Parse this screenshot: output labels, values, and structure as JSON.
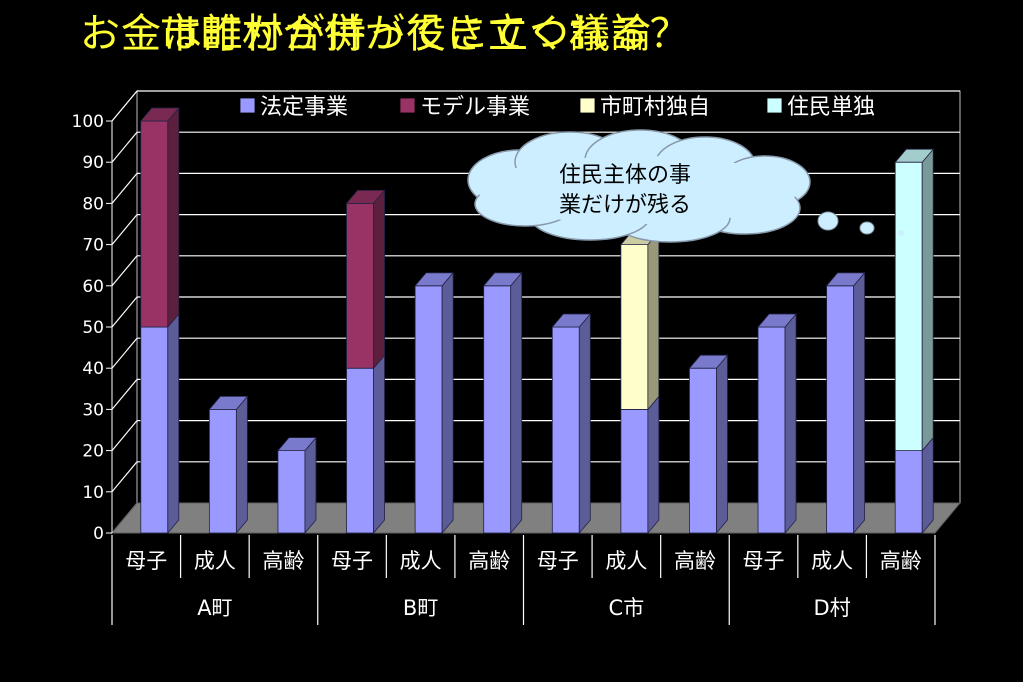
{
  "titles": {
    "line1": "お金は誰かが持ってきてくれる？",
    "line2": "市町村合併が役に立つ議論"
  },
  "colors": {
    "background": "#000000",
    "title": "#ffff33",
    "gridline": "#ffffff",
    "floor": "#808080"
  },
  "cloud": {
    "line1": "住民主体の事",
    "line2": "業だけが残る"
  },
  "chart_data": {
    "type": "bar",
    "stacked": true,
    "three_d": true,
    "ylim": [
      0,
      100
    ],
    "yticks": [
      0,
      10,
      20,
      30,
      40,
      50,
      60,
      70,
      80,
      90,
      100
    ],
    "grid": true,
    "legend_position": "top",
    "groups": [
      {
        "name": "A町",
        "categories": [
          "母子",
          "成人",
          "高齢"
        ]
      },
      {
        "name": "B町",
        "categories": [
          "母子",
          "成人",
          "高齢"
        ]
      },
      {
        "name": "C市",
        "categories": [
          "母子",
          "成人",
          "高齢"
        ]
      },
      {
        "name": "D村",
        "categories": [
          "母子",
          "成人",
          "高齢"
        ]
      }
    ],
    "series": [
      {
        "name": "法定事業",
        "color": "#9999ff",
        "values": [
          50,
          30,
          20,
          40,
          60,
          60,
          50,
          30,
          40,
          50,
          60,
          20
        ]
      },
      {
        "name": "モデル事業",
        "color": "#993366",
        "values": [
          50,
          0,
          0,
          40,
          0,
          0,
          0,
          0,
          0,
          0,
          0,
          0
        ]
      },
      {
        "name": "市町村独自",
        "color": "#ffffcc",
        "values": [
          0,
          0,
          0,
          0,
          0,
          0,
          0,
          40,
          0,
          0,
          0,
          0
        ]
      },
      {
        "name": "住民単独",
        "color": "#ccffff",
        "values": [
          0,
          0,
          0,
          0,
          0,
          0,
          0,
          0,
          0,
          0,
          0,
          70
        ]
      }
    ]
  }
}
